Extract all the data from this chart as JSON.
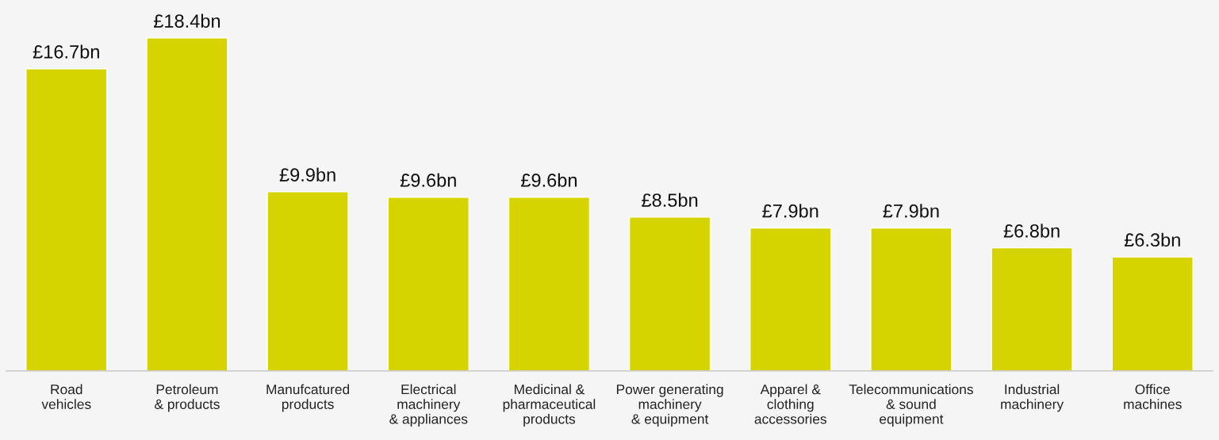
{
  "chart_data": {
    "type": "bar",
    "categories": [
      "Road\nvehicles",
      "Petroleum\n& products",
      "Manufcatured\nproducts",
      "Electrical\nmachinery\n& appliances",
      "Medicinal &\npharmaceutical\nproducts",
      "Power generating\nmachinery\n& equipment",
      "Apparel &\nclothing\naccessories",
      "Telecommunications\n& sound\nequipment",
      "Industrial\nmachinery",
      "Office\nmachines"
    ],
    "values": [
      16.7,
      18.4,
      9.9,
      9.6,
      9.6,
      8.5,
      7.9,
      7.9,
      6.8,
      6.3
    ],
    "value_labels": [
      "£16.7bn",
      "£18.4bn",
      "£9.9bn",
      "£9.6bn",
      "£9.6bn",
      "£8.5bn",
      "£7.9bn",
      "£7.9bn",
      "£6.8bn",
      "£6.3bn"
    ],
    "color": "#d6d400",
    "ylim": [
      0,
      20.5
    ],
    "tick_labels": "x"
  }
}
